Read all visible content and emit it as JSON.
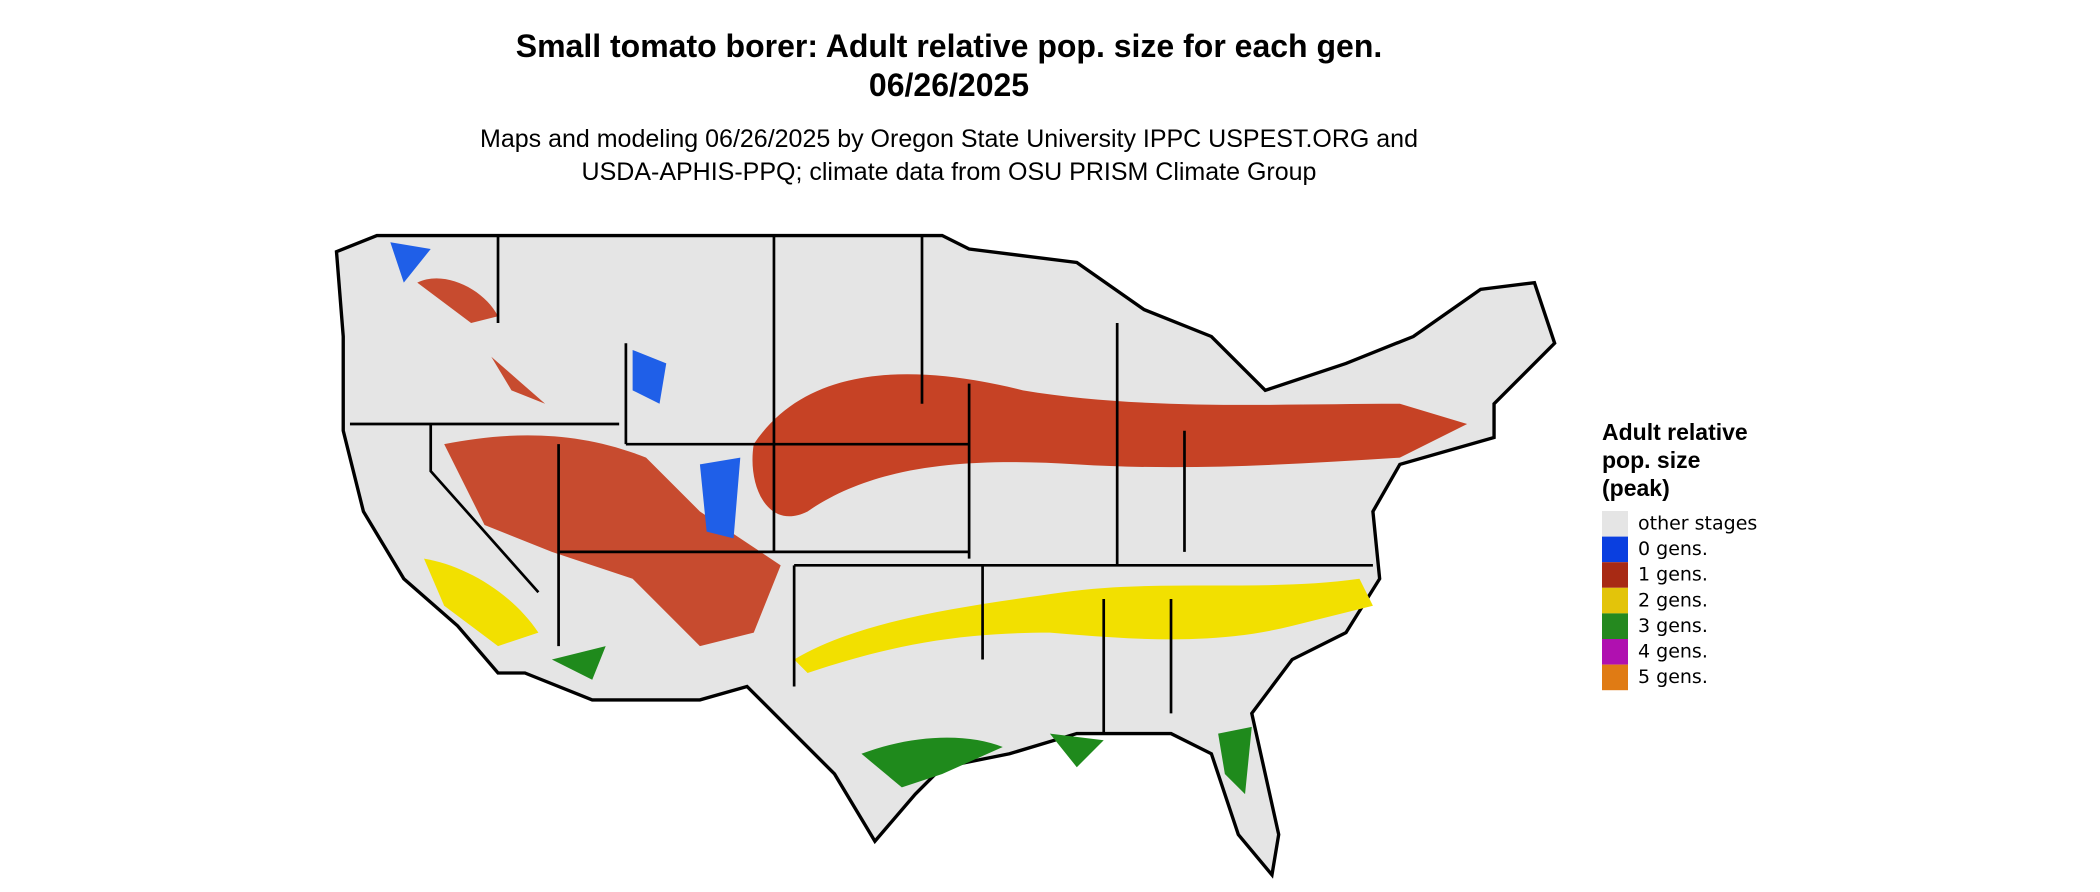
{
  "header": {
    "title": [
      "Small tomato borer: Adult relative pop. size for each gen.",
      "06/26/2025"
    ],
    "subtitle": [
      "Maps and modeling 06/26/2025 by Oregon State University IPPC USPEST.ORG and",
      "USDA-APHIS-PPQ; climate data from OSU PRISM Climate Group"
    ]
  },
  "legend": {
    "title": [
      "Adult relative",
      "pop. size",
      "(peak)"
    ],
    "items": [
      {
        "label": "other stages",
        "color": "#e5e5e5"
      },
      {
        "label": "0 gens.",
        "color": "#0a3fe0"
      },
      {
        "label": "1 gens.",
        "color": "#a82a14"
      },
      {
        "label": "2 gens.",
        "color": "#e3c40a"
      },
      {
        "label": "3 gens.",
        "color": "#25891f"
      },
      {
        "label": "4 gens.",
        "color": "#b010b0"
      },
      {
        "label": "5 gens.",
        "color": "#e07b14"
      }
    ]
  }
}
